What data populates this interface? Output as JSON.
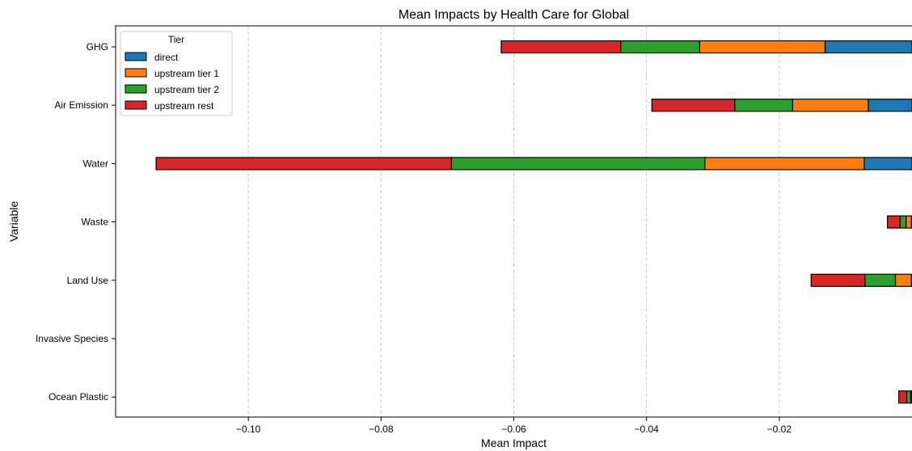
{
  "chart_data": {
    "type": "bar",
    "orientation": "horizontal",
    "stacked": true,
    "title": "Mean Impacts by Health Care for Global",
    "xlabel": "Mean Impact",
    "ylabel": "Variable",
    "xlim": [
      -0.12,
      0.0
    ],
    "xticks": [
      -0.1,
      -0.08,
      -0.06,
      -0.04,
      -0.02
    ],
    "xtick_labels": [
      "−0.10",
      "−0.08",
      "−0.06",
      "−0.04",
      "−0.02"
    ],
    "categories": [
      "GHG",
      "Air Emission",
      "Water",
      "Waste",
      "Land Use",
      "Invasive Species",
      "Ocean Plastic"
    ],
    "grid": "x-dashed",
    "legend": {
      "title": "Tier",
      "placement": "top-left"
    },
    "series": [
      {
        "name": "direct",
        "color": "#1f77b4",
        "values": [
          -0.0131,
          -0.0066,
          -0.0072,
          -0.0001,
          -0.0001,
          0,
          -0.0001
        ]
      },
      {
        "name": "upstream tier 1",
        "color": "#ff7f0e",
        "values": [
          -0.0189,
          -0.0114,
          -0.024,
          -0.0008,
          -0.0024,
          0,
          -0.0001
        ]
      },
      {
        "name": "upstream tier 2",
        "color": "#2ca02c",
        "values": [
          -0.0119,
          -0.0087,
          -0.0382,
          -0.0009,
          -0.0046,
          0,
          -0.0006
        ]
      },
      {
        "name": "upstream rest",
        "color": "#d62728",
        "values": [
          -0.018,
          -0.0125,
          -0.0445,
          -0.0019,
          -0.0081,
          0,
          -0.0012
        ]
      }
    ]
  }
}
